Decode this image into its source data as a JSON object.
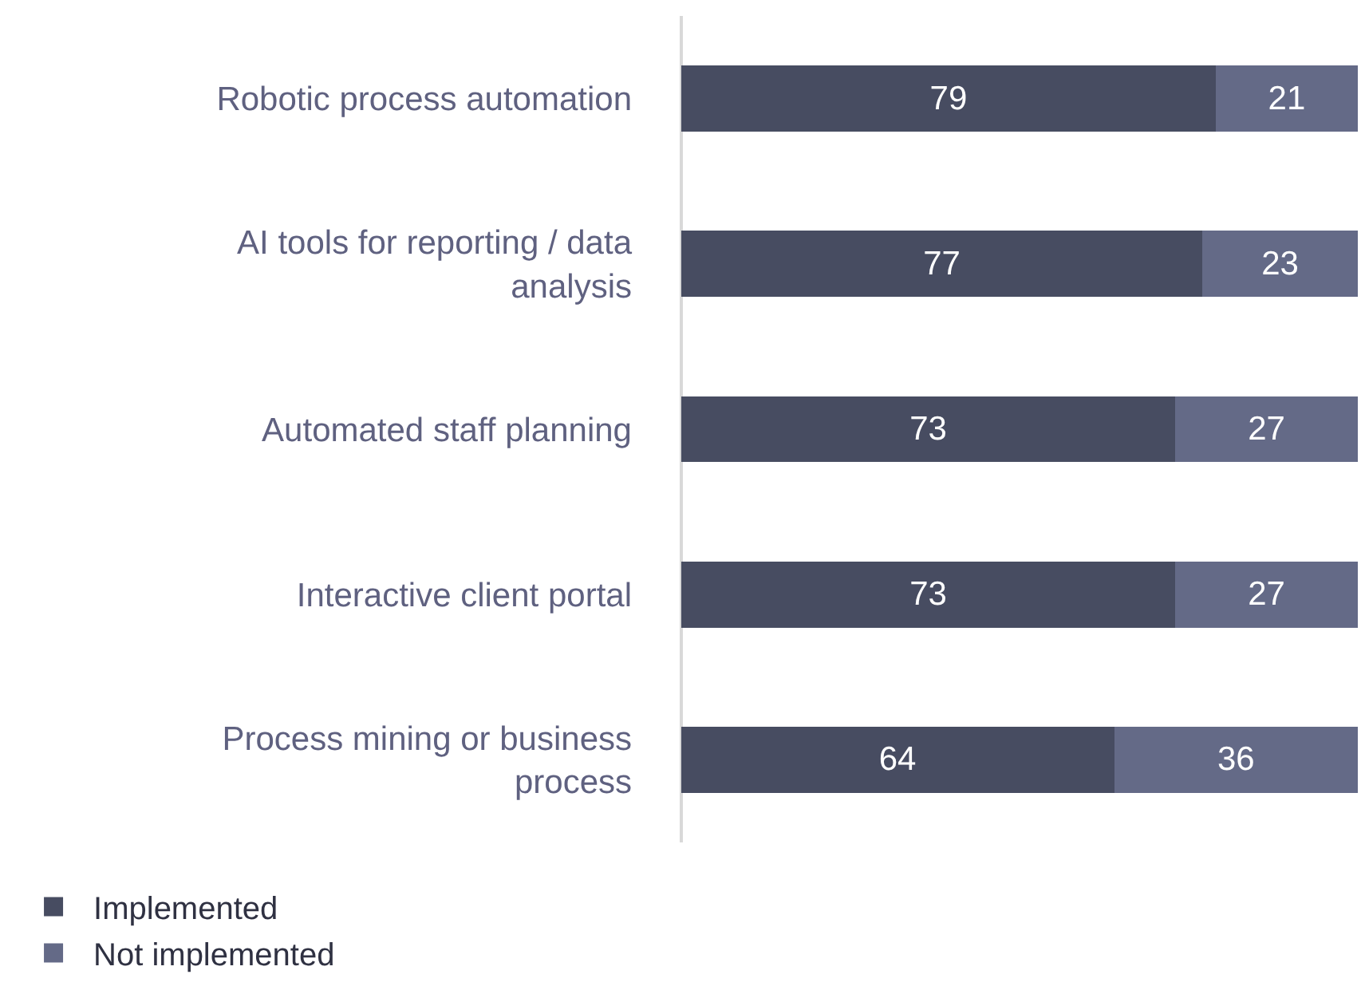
{
  "chart_data": {
    "type": "bar",
    "orientation": "horizontal",
    "stacked": true,
    "data_labels": true,
    "legend": "bottom left",
    "grid": false,
    "categories": [
      "Robotic process automation",
      "AI tools for reporting / data analysis",
      "Automated staff planning",
      "Interactive client portal",
      "Process mining or business process"
    ],
    "xlim": [
      0,
      100
    ],
    "tick_labels": "y",
    "series": [
      {
        "name": "Implemented",
        "color": "#474c61",
        "values": [
          79,
          77,
          73,
          73,
          64
        ]
      },
      {
        "name": "Not implemented",
        "color": "#646a87",
        "values": [
          21,
          23,
          27,
          27,
          36
        ]
      }
    ]
  }
}
